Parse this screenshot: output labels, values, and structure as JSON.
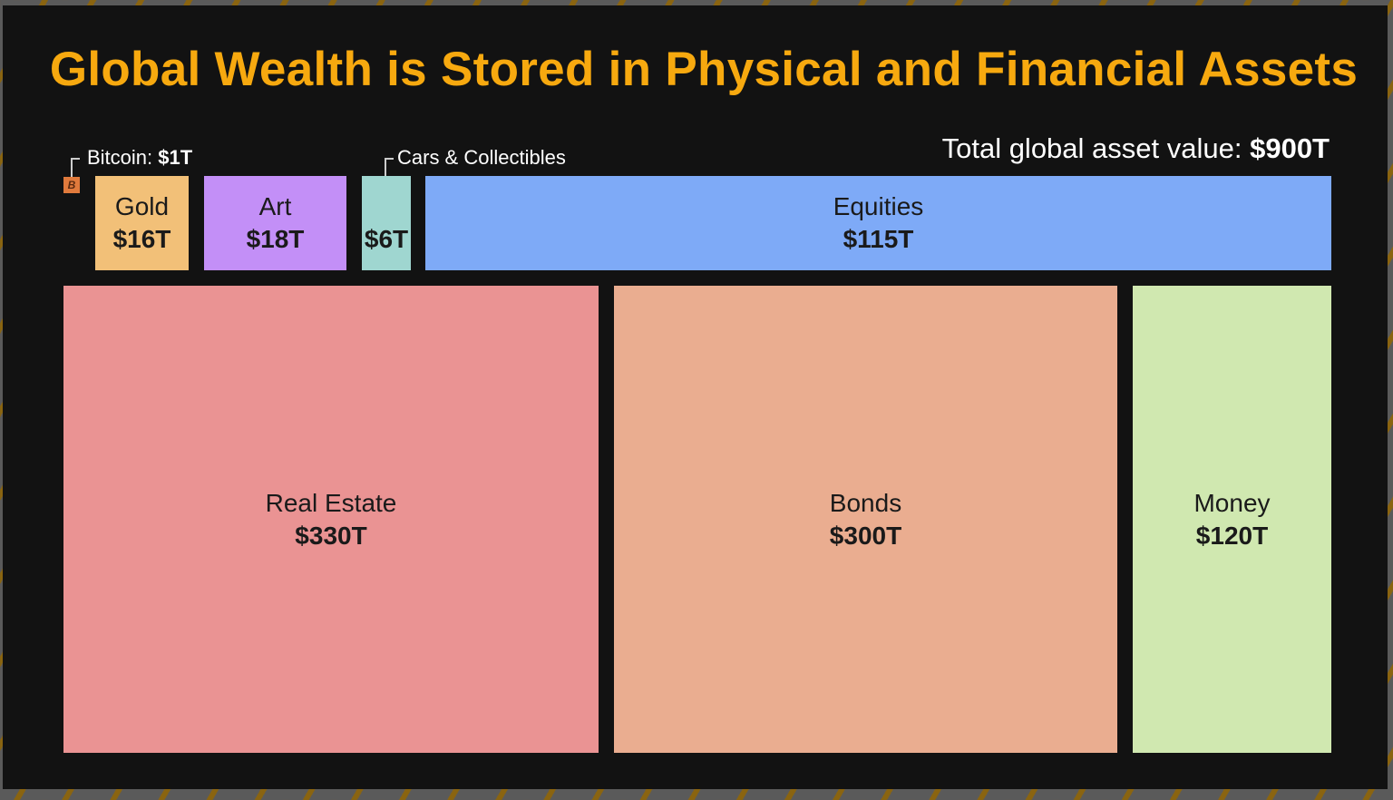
{
  "chart_data": {
    "type": "treemap",
    "title": "Global Wealth is Stored in Physical and Financial Assets",
    "total_label": "Total global asset value:",
    "total_value": "$900T",
    "unit": "trillion USD",
    "items": [
      {
        "name": "Bitcoin",
        "label": "Bitcoin:",
        "value_label": "$1T",
        "value": 1,
        "color": "#e07a3c"
      },
      {
        "name": "Gold",
        "label": "Gold",
        "value_label": "$16T",
        "value": 16,
        "color": "#f2c078"
      },
      {
        "name": "Art",
        "label": "Art",
        "value_label": "$18T",
        "value": 18,
        "color": "#c38ff7"
      },
      {
        "name": "Cars & Collectibles",
        "label": "Cars & Collectibles",
        "value_label": "$6T",
        "value": 6,
        "color": "#9fd6d0"
      },
      {
        "name": "Equities",
        "label": "Equities",
        "value_label": "$115T",
        "value": 115,
        "color": "#7eaaf7"
      },
      {
        "name": "Real Estate",
        "label": "Real Estate",
        "value_label": "$330T",
        "value": 330,
        "color": "#ea9393"
      },
      {
        "name": "Bonds",
        "label": "Bonds",
        "value_label": "$300T",
        "value": 300,
        "color": "#eaad90"
      },
      {
        "name": "Money",
        "label": "Money",
        "value_label": "$120T",
        "value": 120,
        "color": "#d0e8b0"
      }
    ],
    "bitcoin_icon_text": "B"
  }
}
